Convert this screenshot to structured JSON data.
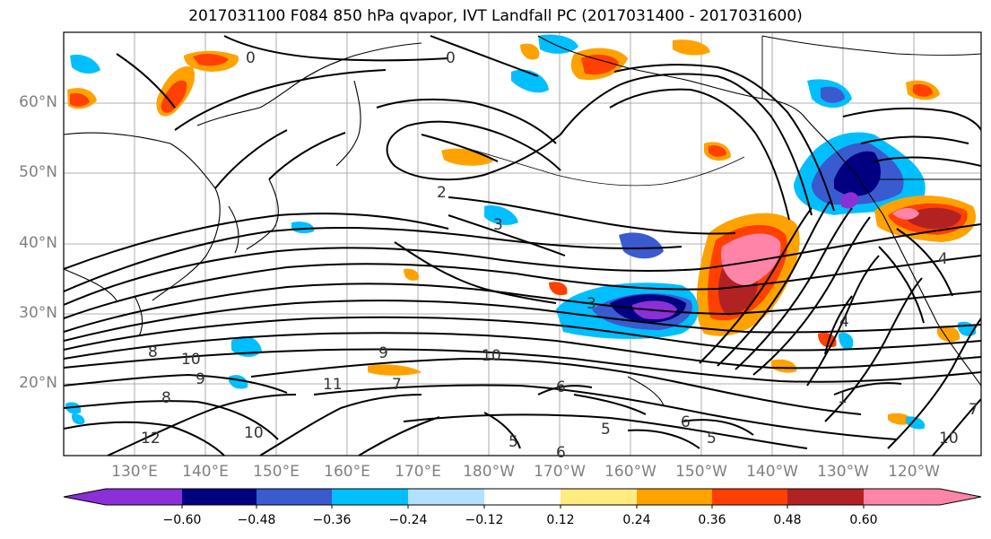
{
  "title": "2017031100 F084 850 hPa qvapor, IVT Landfall PC (2017031400 - 2017031600)",
  "map": {
    "lat_labels": [
      "60°N",
      "50°N",
      "40°N",
      "30°N",
      "20°N"
    ],
    "lon_labels": [
      "130°E",
      "140°E",
      "150°E",
      "160°E",
      "170°E",
      "180°W",
      "170°W",
      "160°W",
      "150°W",
      "140°W",
      "130°W",
      "120°W"
    ],
    "contour_labels": [
      "0",
      "2",
      "0",
      "3",
      "3",
      "10",
      "10",
      "8",
      "9",
      "8",
      "11",
      "12",
      "10",
      "6",
      "5",
      "6",
      "5",
      "4",
      "1",
      "4",
      "7",
      "10",
      "5",
      "6",
      "7",
      "9"
    ],
    "fill_colors": {
      "neg_strong": "#8b2fd6",
      "neg_navy": "#000080",
      "neg_blue": "#3a5ad0",
      "neg_cyan": "#00bfff",
      "neg_light": "#b3e0ff",
      "pos_yellow": "#ffeb80",
      "pos_orange": "#ffa200",
      "pos_red": "#ff4000",
      "pos_dark": "#b22222",
      "pos_pink": "#ff85a8"
    }
  },
  "colorbar": {
    "colors": [
      "#8b2fd6",
      "#000080",
      "#3a5ad0",
      "#00bfff",
      "#b3e0ff",
      "#ffffff",
      "#ffeb80",
      "#ffa200",
      "#ff4000",
      "#b22222",
      "#ff85a8"
    ],
    "tick_labels": [
      "−0.60",
      "−0.48",
      "−0.36",
      "−0.24",
      "−0.12",
      "0.12",
      "0.24",
      "0.36",
      "0.48",
      "0.60"
    ]
  }
}
